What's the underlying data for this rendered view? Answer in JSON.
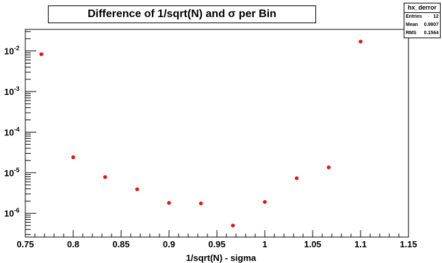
{
  "chart_data": {
    "type": "scatter",
    "title": "Difference of 1/sqrt(N) and σ per Bin",
    "xlabel": "1/sqrt(N) - sigma",
    "ylabel": "",
    "xlim": [
      0.75,
      1.15
    ],
    "ylim": [
      2.6e-07,
      0.034
    ],
    "yscale": "log",
    "grid": false,
    "marker_color": "#ee1111",
    "x_ticks": [
      "0.75",
      "0.8",
      "0.85",
      "0.9",
      "0.95",
      "1",
      "1.05",
      "1.1",
      "1.15"
    ],
    "y_ticks": [
      {
        "value": 1e-06,
        "base": "10",
        "exp": "-6"
      },
      {
        "value": 1e-05,
        "base": "10",
        "exp": "-5"
      },
      {
        "value": 0.0001,
        "base": "10",
        "exp": "-4"
      },
      {
        "value": 0.001,
        "base": "10",
        "exp": "-3"
      },
      {
        "value": 0.01,
        "base": "10",
        "exp": "-2"
      }
    ],
    "points": [
      {
        "x": 0.7667,
        "y": 0.0083
      },
      {
        "x": 0.8,
        "y": 2.4e-05
      },
      {
        "x": 0.8333,
        "y": 7.8e-06
      },
      {
        "x": 0.8667,
        "y": 3.9e-06
      },
      {
        "x": 0.9,
        "y": 1.8e-06
      },
      {
        "x": 0.9333,
        "y": 1.75e-06
      },
      {
        "x": 0.9667,
        "y": 5e-07
      },
      {
        "x": 1.0,
        "y": 1.9e-06
      },
      {
        "x": 1.0333,
        "y": 7.3e-06
      },
      {
        "x": 1.0667,
        "y": 1.35e-05
      },
      {
        "x": 1.1,
        "y": 0.017
      }
    ]
  },
  "stats": {
    "name": "hx_derror",
    "rows": [
      {
        "label": "Entries",
        "value": "12"
      },
      {
        "label": "Mean",
        "value": "0.9907"
      },
      {
        "label": "RMS",
        "value": "0.1564"
      }
    ]
  }
}
